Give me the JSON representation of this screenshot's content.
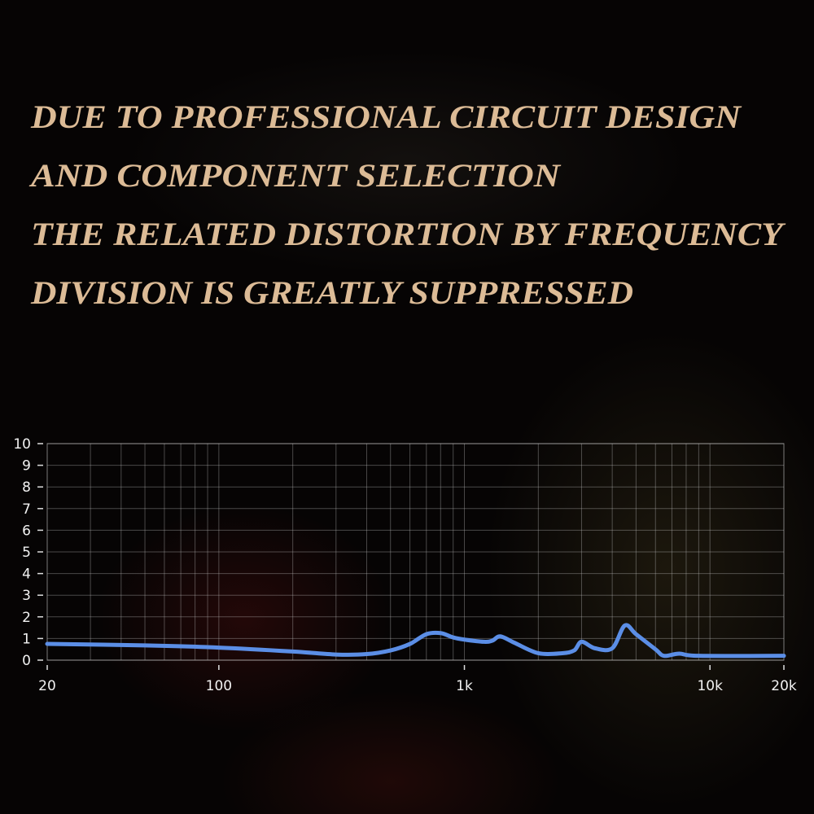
{
  "headline": {
    "lines": [
      "DUE TO PROFESSIONAL CIRCUIT DESIGN",
      "AND COMPONENT SELECTION",
      "THE RELATED DISTORTION BY FREQUENCY",
      "DIVISION IS GREATLY SUPPRESSED"
    ],
    "color": "#dcbb96"
  },
  "chart_data": {
    "type": "line",
    "title": "",
    "xlabel": "",
    "ylabel": "",
    "x_scale": "log",
    "xlim": [
      20,
      20000
    ],
    "ylim": [
      0,
      10
    ],
    "grid": true,
    "x_tick_labels": [
      "20",
      "100",
      "1k",
      "10k",
      "20k"
    ],
    "x_ticks": [
      20,
      100,
      1000,
      10000,
      20000
    ],
    "y_ticks": [
      0,
      1,
      2,
      3,
      4,
      5,
      6,
      7,
      8,
      9,
      10
    ],
    "y_tick_labels": [
      "0",
      "1",
      "2",
      "3",
      "4",
      "5",
      "6",
      "7",
      "8",
      "9",
      "10"
    ],
    "series_color": "#5b8ee6",
    "series": [
      {
        "x": [
          20,
          50,
          100,
          200,
          300,
          400,
          500,
          600,
          700,
          800,
          900,
          1000,
          1200,
          1300,
          1400,
          1600,
          2000,
          2500,
          2800,
          3000,
          3400,
          4000,
          4500,
          5000,
          6000,
          6500,
          7500,
          9000,
          20000
        ],
        "y": [
          0.75,
          0.68,
          0.58,
          0.4,
          0.26,
          0.28,
          0.45,
          0.75,
          1.2,
          1.25,
          1.05,
          0.95,
          0.85,
          0.9,
          1.1,
          0.8,
          0.32,
          0.32,
          0.45,
          0.85,
          0.55,
          0.55,
          1.6,
          1.2,
          0.5,
          0.2,
          0.3,
          0.2,
          0.2
        ]
      }
    ]
  }
}
